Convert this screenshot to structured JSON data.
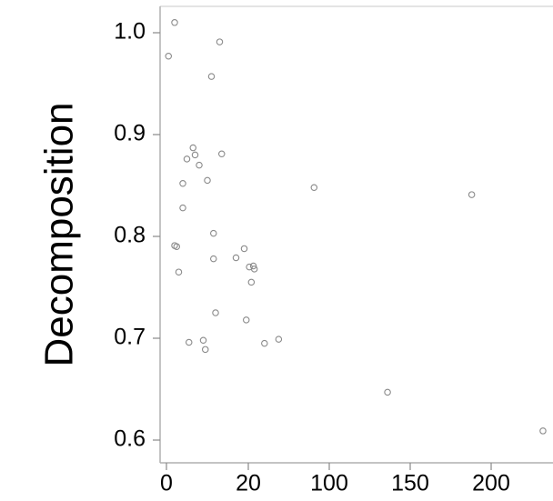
{
  "chart_data": {
    "type": "scatter",
    "title": "",
    "xlabel": "",
    "ylabel": "Decomposition",
    "grid": false,
    "legend": "none",
    "colors": {
      "axis": "#b0b0b0",
      "tick": "#888888",
      "marker": "#8a8a8a",
      "text": "#000000"
    },
    "xticks": [
      "0",
      "20",
      "100",
      "150",
      "200"
    ],
    "yticks": [
      "0.6",
      "0.7",
      "0.8",
      "0.9",
      "1.0"
    ],
    "ylim": [
      0.59,
      1.02
    ],
    "points": [
      {
        "x": 0.5,
        "y": 0.977
      },
      {
        "x": 2,
        "y": 1.01
      },
      {
        "x": 2,
        "y": 0.791
      },
      {
        "x": 2.5,
        "y": 0.79
      },
      {
        "x": 3,
        "y": 0.765
      },
      {
        "x": 4,
        "y": 0.852
      },
      {
        "x": 4,
        "y": 0.828
      },
      {
        "x": 5,
        "y": 0.876
      },
      {
        "x": 5.5,
        "y": 0.696
      },
      {
        "x": 6.5,
        "y": 0.887
      },
      {
        "x": 7,
        "y": 0.88
      },
      {
        "x": 8,
        "y": 0.87
      },
      {
        "x": 9,
        "y": 0.698
      },
      {
        "x": 9.5,
        "y": 0.689
      },
      {
        "x": 10,
        "y": 0.855
      },
      {
        "x": 11,
        "y": 0.957
      },
      {
        "x": 11.5,
        "y": 0.803
      },
      {
        "x": 11.5,
        "y": 0.778
      },
      {
        "x": 12,
        "y": 0.725
      },
      {
        "x": 13,
        "y": 0.991
      },
      {
        "x": 13.5,
        "y": 0.881
      },
      {
        "x": 17,
        "y": 0.779
      },
      {
        "x": 19,
        "y": 0.788
      },
      {
        "x": 19.5,
        "y": 0.718
      },
      {
        "x": 21,
        "y": 0.77
      },
      {
        "x": 23,
        "y": 0.755
      },
      {
        "x": 25,
        "y": 0.771
      },
      {
        "x": 26,
        "y": 0.768
      },
      {
        "x": 36,
        "y": 0.695
      },
      {
        "x": 50,
        "y": 0.699
      },
      {
        "x": 85,
        "y": 0.848
      },
      {
        "x": 136,
        "y": 0.647
      },
      {
        "x": 188,
        "y": 0.841
      },
      {
        "x": 232,
        "y": 0.609
      }
    ]
  }
}
